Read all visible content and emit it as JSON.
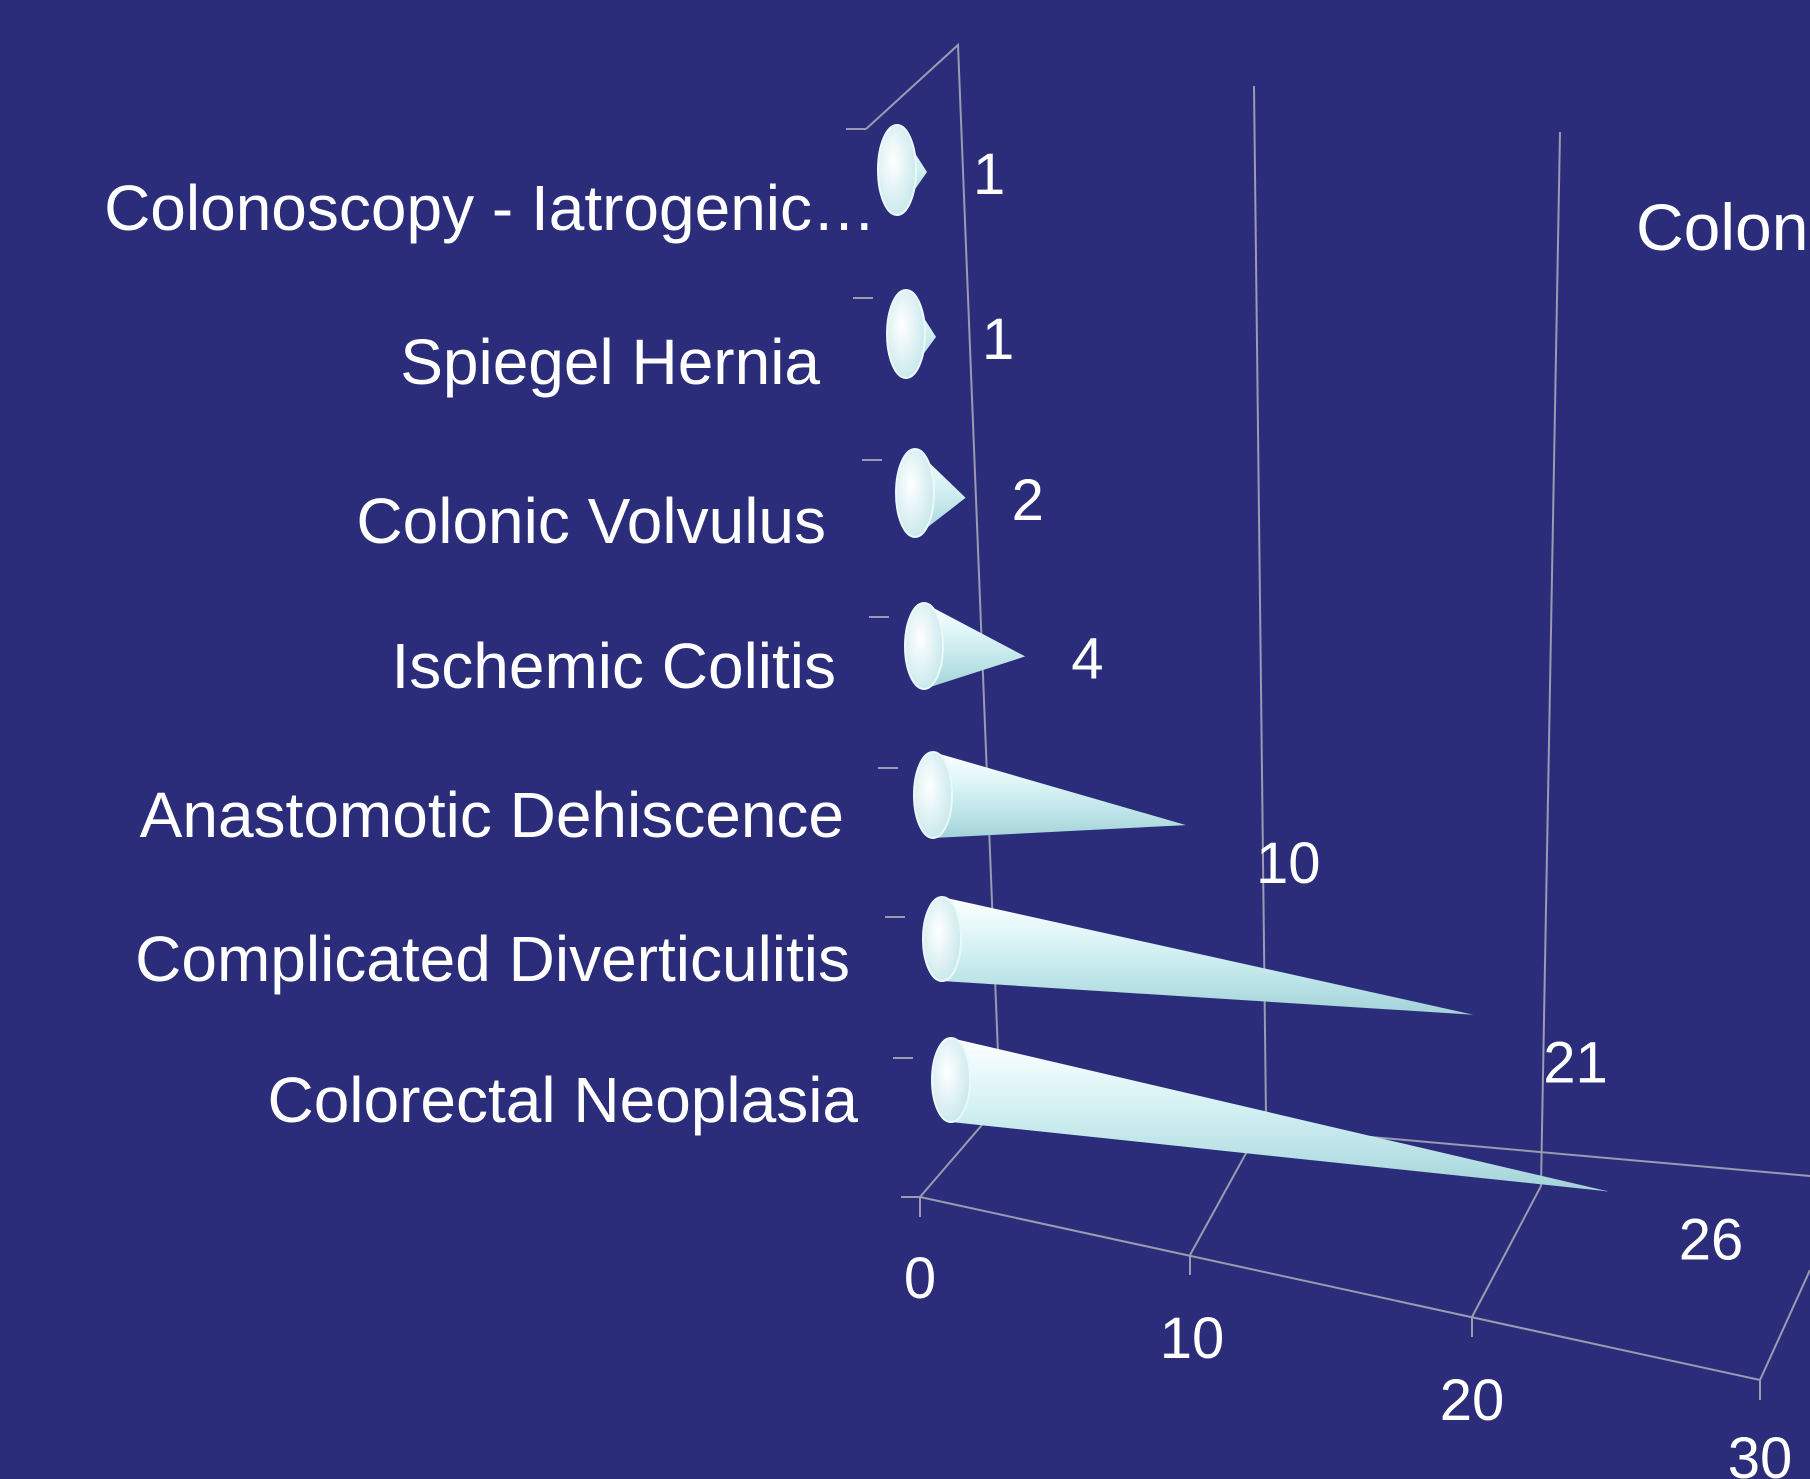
{
  "chart_data": {
    "type": "bar",
    "orientation": "horizontal",
    "mark": "cone",
    "style": "3d",
    "categories": [
      "Colonoscopy - Iatrogenic…",
      "Spiegel Hernia",
      "Colonic Volvulus",
      "Ischemic Colitis",
      "Anastomotic Dehiscence",
      "Complicated Diverticulitis",
      "Colorectal Neoplasia"
    ],
    "values": [
      1,
      1,
      2,
      4,
      10,
      21,
      26
    ],
    "data_labels": [
      "1",
      "1",
      "2",
      "4",
      "10",
      "21",
      "26"
    ],
    "x_ticks": [
      "0",
      "10",
      "20",
      "30"
    ],
    "xlim": [
      0,
      30
    ],
    "side_text": "Colon",
    "colors": {
      "background": "#2b2d7b",
      "cone": "#cdeff2",
      "text": "#ffffff",
      "grid": "#9a9ab0"
    }
  }
}
